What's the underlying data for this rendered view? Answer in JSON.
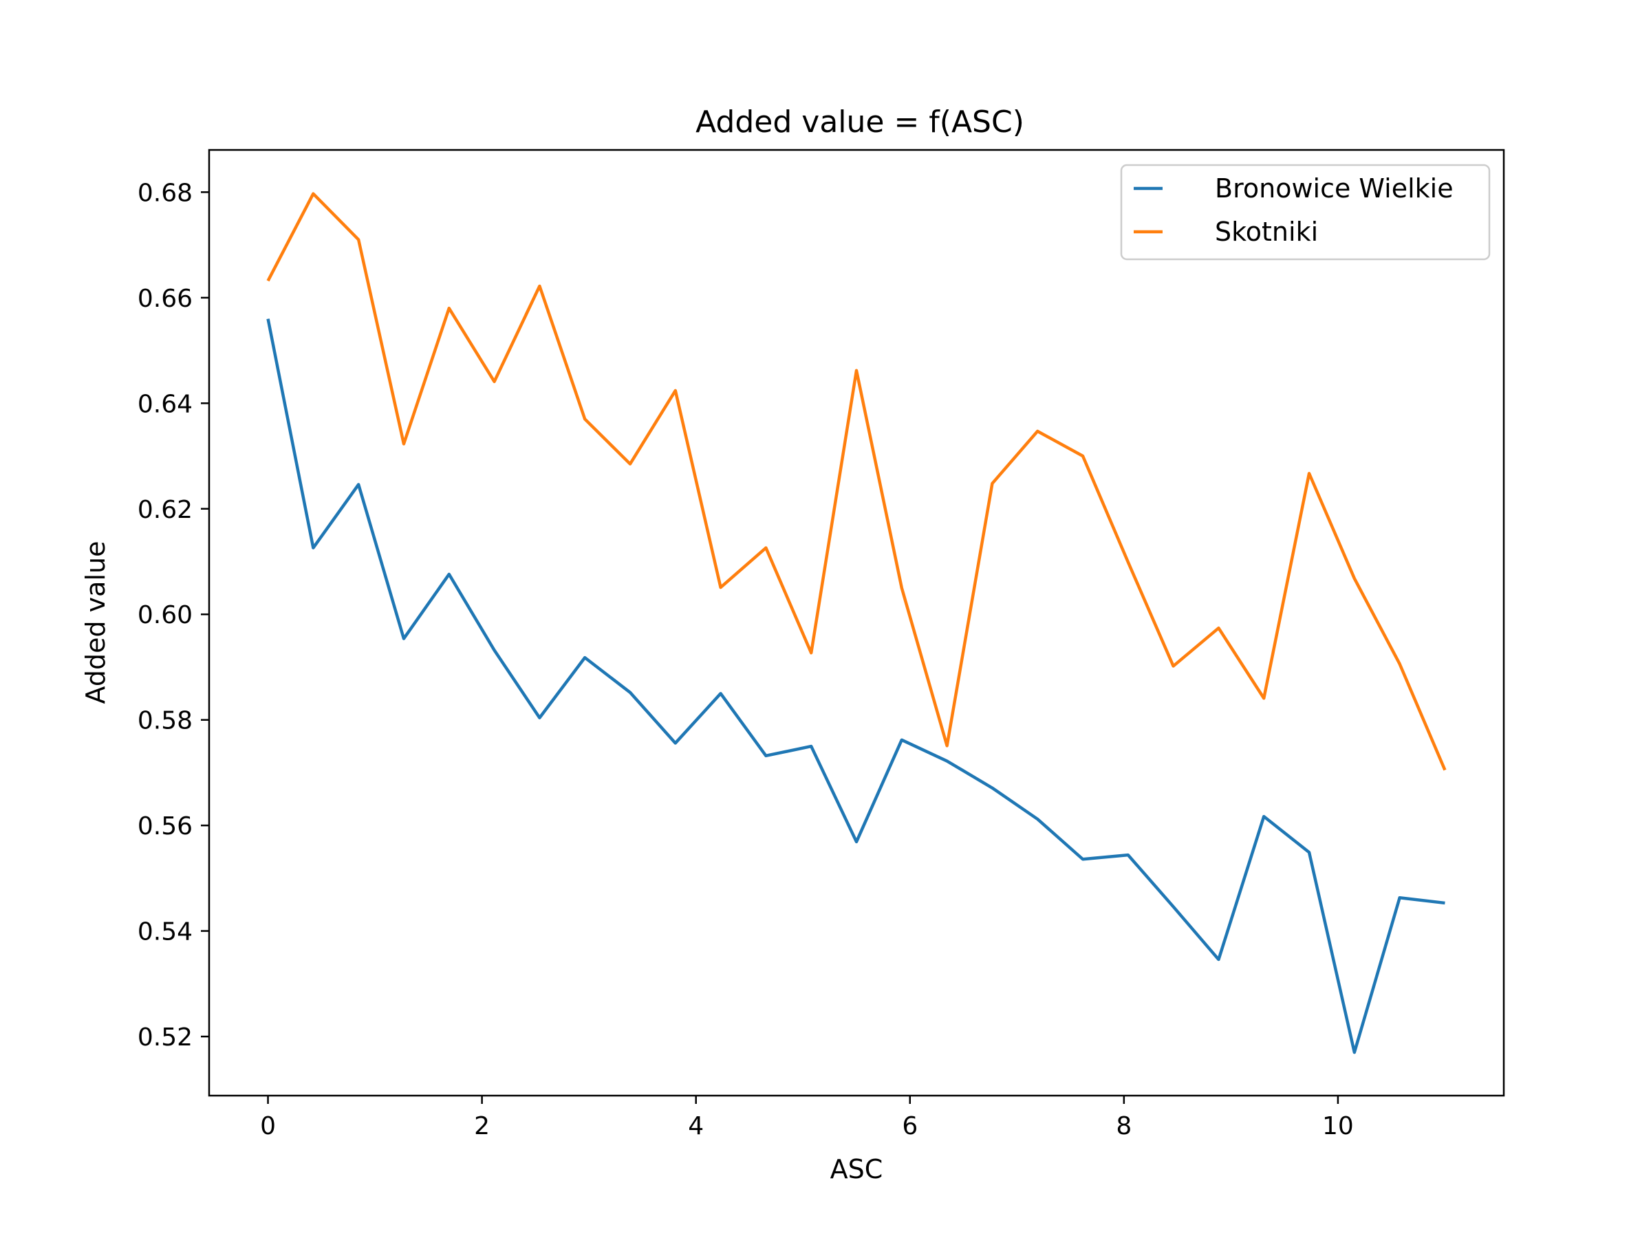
{
  "chart_data": {
    "type": "line",
    "title": "Added value = f(ASC)",
    "xlabel": "ASC",
    "ylabel": "Added value",
    "xlim": [
      -0.55,
      11.55
    ],
    "ylim": [
      0.5088,
      0.688
    ],
    "xticks": [
      0,
      2,
      4,
      6,
      8,
      10
    ],
    "yticks": [
      0.52,
      0.54,
      0.56,
      0.58,
      0.6,
      0.62,
      0.64,
      0.66,
      0.68
    ],
    "grid": false,
    "legend_position": "top-right",
    "x": [
      0,
      0.4231,
      0.8462,
      1.2692,
      1.6923,
      2.1154,
      2.5385,
      2.9615,
      3.3846,
      3.8077,
      4.2308,
      4.6538,
      5.0769,
      5.5,
      5.9231,
      6.3462,
      6.7692,
      7.1923,
      7.6154,
      8.0385,
      8.4615,
      8.8846,
      9.3077,
      9.7308,
      10.1538,
      10.5769,
      11.0
    ],
    "series": [
      {
        "name": "Bronowice Wielkie",
        "color": "#1f77b4",
        "values": [
          0.656,
          0.6126,
          0.6246,
          0.5954,
          0.6076,
          0.5932,
          0.5804,
          0.5918,
          0.5852,
          0.5756,
          0.585,
          0.5732,
          0.575,
          0.5569,
          0.5762,
          0.5722,
          0.5671,
          0.5612,
          0.5536,
          0.5544,
          0.5446,
          0.5346,
          0.5617,
          0.5549,
          0.517,
          0.5463,
          0.5453
        ]
      },
      {
        "name": "Skotniki",
        "color": "#ff7f0e",
        "values": [
          0.6632,
          0.6797,
          0.671,
          0.6323,
          0.658,
          0.6441,
          0.6622,
          0.637,
          0.6285,
          0.6424,
          0.6051,
          0.6126,
          0.5927,
          0.6462,
          0.605,
          0.5751,
          0.6248,
          0.6347,
          0.63,
          0.6099,
          0.5902,
          0.5974,
          0.5841,
          0.6267,
          0.6068,
          0.5906,
          0.5705
        ]
      }
    ]
  }
}
